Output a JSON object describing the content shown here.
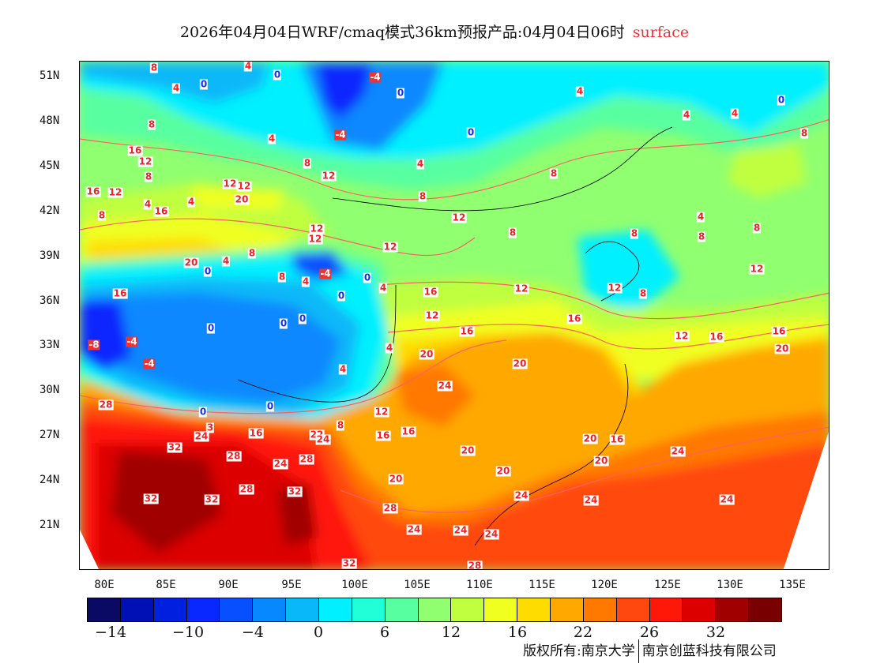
{
  "title": {
    "main": "2026年04月04日WRF/cmaq模式36km预报产品:04月04日06时",
    "level": "surface"
  },
  "colors": {
    "title_level": "#ee3333",
    "contour": "#ff6060",
    "label_positive": "#ee2222",
    "label_zero": "#1133ee"
  },
  "axes": {
    "lat_labels": [
      "51N",
      "48N",
      "45N",
      "42N",
      "39N",
      "36N",
      "33N",
      "30N",
      "27N",
      "24N",
      "21N"
    ],
    "lon_labels": [
      "80E",
      "85E",
      "90E",
      "95E",
      "100E",
      "105E",
      "110E",
      "115E",
      "120E",
      "125E",
      "130E",
      "135E"
    ]
  },
  "colorbar": {
    "colors": [
      "#0a0a64",
      "#0010b4",
      "#0020e0",
      "#0828ff",
      "#0850ff",
      "#0888ff",
      "#08b8f8",
      "#00f0ff",
      "#20ffd8",
      "#58ffa0",
      "#90ff70",
      "#c0ff40",
      "#f0ff20",
      "#ffdc00",
      "#ffa800",
      "#ff7800",
      "#ff4810",
      "#ff1808",
      "#dc0000",
      "#a00000",
      "#780000"
    ],
    "tick_labels": [
      "−14",
      "−10",
      "−4",
      "0",
      "6",
      "12",
      "16",
      "22",
      "26",
      "32"
    ]
  },
  "copyright": {
    "left": "版权所有:南京大学",
    "right": "南京创蓝科技有限公司"
  },
  "contour_labels": [
    "8",
    "4",
    "4",
    "0",
    "0",
    "-4",
    "0",
    "4",
    "0",
    "8",
    "4",
    "-4",
    "0",
    "4",
    "4",
    "8",
    "16",
    "12",
    "8",
    "12",
    "4",
    "8",
    "8",
    "16",
    "12",
    "12",
    "12",
    "20",
    "4",
    "16",
    "4",
    "8",
    "12",
    "8",
    "12",
    "12",
    "8",
    "8",
    "4",
    "8",
    "8",
    "12",
    "20",
    "4",
    "8",
    "-4",
    "0",
    "8",
    "4",
    "0",
    "4",
    "12",
    "12",
    "8",
    "12",
    "16",
    "0",
    "16",
    "12",
    "16",
    "0",
    "0",
    "0",
    "16",
    "12",
    "16",
    "16",
    "-8",
    "-4",
    "4",
    "20",
    "20",
    "-4",
    "20",
    "4",
    "24",
    "28",
    "0",
    "0",
    "12",
    "8",
    "16",
    "3",
    "24",
    "16",
    "16",
    "22",
    "24",
    "20",
    "16",
    "32",
    "28",
    "24",
    "28",
    "20",
    "20",
    "24",
    "20",
    "20",
    "32",
    "32",
    "28",
    "32",
    "24",
    "24",
    "24",
    "28",
    "24",
    "24",
    "24",
    "32",
    "28"
  ]
}
